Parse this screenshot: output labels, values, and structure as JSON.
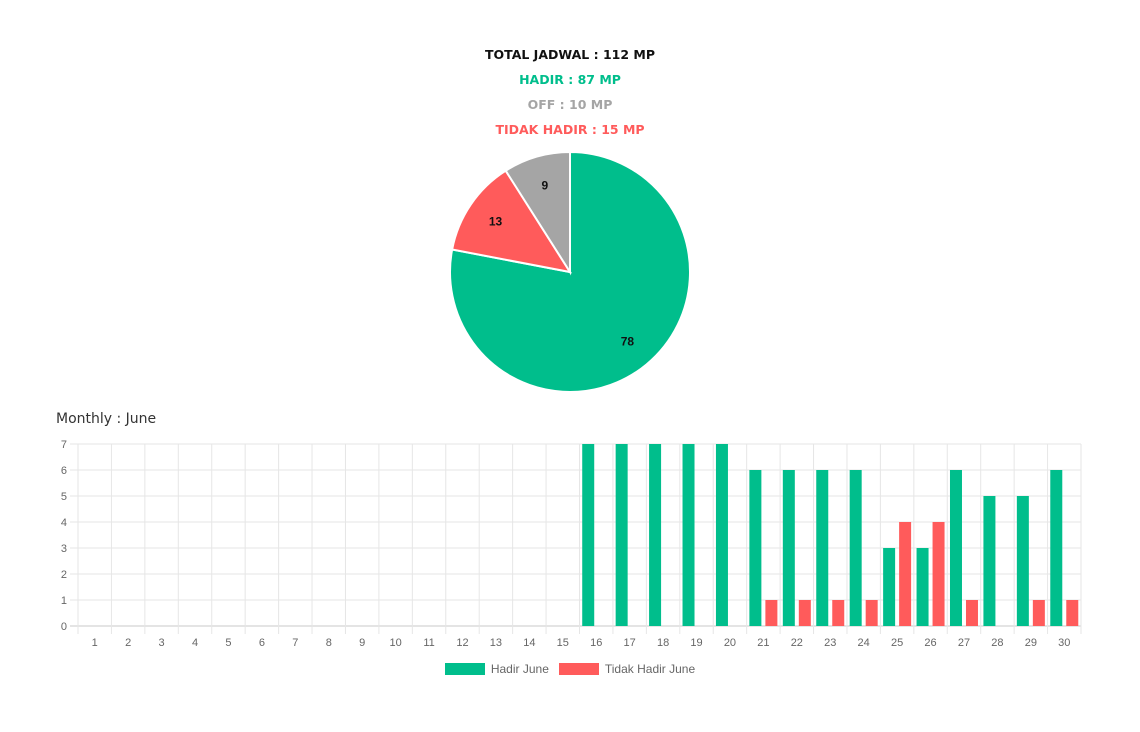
{
  "summary": {
    "total": "TOTAL JADWAL : 112 MP",
    "hadir": "HADIR : 87 MP",
    "off": "OFF : 10 MP",
    "tidak_hadir": "TIDAK HADIR : 15 MP"
  },
  "colors": {
    "total": "#111111",
    "hadir": "#00be8c",
    "off": "#a5a5a5",
    "tidak_hadir": "#ff5b5b"
  },
  "chart_data": [
    {
      "type": "pie",
      "slices": [
        {
          "label": "Hadir",
          "value": 78,
          "color": "#00be8c"
        },
        {
          "label": "Tidak Hadir",
          "value": 13,
          "color": "#ff5b5b"
        },
        {
          "label": "Off",
          "value": 9,
          "color": "#a5a5a5"
        }
      ]
    },
    {
      "type": "bar",
      "title": "Monthly : June",
      "categories": [
        "1",
        "2",
        "3",
        "4",
        "5",
        "6",
        "7",
        "8",
        "9",
        "10",
        "11",
        "12",
        "13",
        "14",
        "15",
        "16",
        "17",
        "18",
        "19",
        "20",
        "21",
        "22",
        "23",
        "24",
        "25",
        "26",
        "27",
        "28",
        "29",
        "30"
      ],
      "series": [
        {
          "name": "Hadir June",
          "color": "#00be8c",
          "values": [
            0,
            0,
            0,
            0,
            0,
            0,
            0,
            0,
            0,
            0,
            0,
            0,
            0,
            0,
            0,
            7,
            7,
            7,
            7,
            7,
            6,
            6,
            6,
            6,
            3,
            3,
            6,
            5,
            5,
            6
          ]
        },
        {
          "name": "Tidak Hadir June",
          "color": "#ff5b5b",
          "values": [
            0,
            0,
            0,
            0,
            0,
            0,
            0,
            0,
            0,
            0,
            0,
            0,
            0,
            0,
            0,
            0,
            0,
            0,
            0,
            0,
            1,
            1,
            1,
            1,
            4,
            4,
            1,
            0,
            1,
            1
          ]
        }
      ],
      "ylim": [
        0,
        7
      ],
      "yticks": [
        0,
        1,
        2,
        3,
        4,
        5,
        6,
        7
      ],
      "grid": true,
      "legend": "bottom"
    }
  ]
}
